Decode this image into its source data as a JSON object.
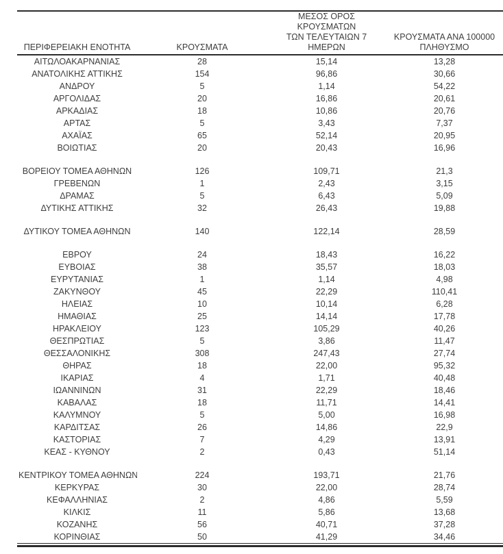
{
  "colors": {
    "text": "#3d3d3d",
    "rule": "#2b2b2b",
    "background": "#ffffff"
  },
  "table": {
    "headers": [
      "ΠΕΡΙΦΕΡΕΙΑΚΗ ΕΝΟΤΗΤΑ",
      "ΚΡΟΥΣΜΑΤΑ",
      "ΜΕΣΟΣ ΟΡΟΣ ΚΡΟΥΣΜΑΤΩΝ\nΤΩΝ ΤΕΛΕΥΤΑΙΩΝ 7\nΗΜΕΡΩΝ",
      "ΚΡΟΥΣΜΑΤΑ ΑΝΑ 100000\nΠΛΗΘΥΣΜΟ"
    ],
    "rows": [
      [
        "ΑΙΤΩΛΟΑΚΑΡΝΑΝΙΑΣ",
        "28",
        "15,14",
        "13,28"
      ],
      [
        "ΑΝΑΤΟΛΙΚΗΣ ΑΤΤΙΚΗΣ",
        "154",
        "96,86",
        "30,66"
      ],
      [
        "ΑΝΔΡΟΥ",
        "5",
        "1,14",
        "54,22"
      ],
      [
        "ΑΡΓΟΛΙΔΑΣ",
        "20",
        "16,86",
        "20,61"
      ],
      [
        "ΑΡΚΑΔΙΑΣ",
        "18",
        "10,86",
        "20,76"
      ],
      [
        "ΑΡΤΑΣ",
        "5",
        "3,43",
        "7,37"
      ],
      [
        "ΑΧΑΪΑΣ",
        "65",
        "52,14",
        "20,95"
      ],
      [
        "ΒΟΙΩΤΙΑΣ",
        "20",
        "20,43",
        "16,96"
      ],
      null,
      [
        "ΒΟΡΕΙΟΥ ΤΟΜΕΑ ΑΘΗΝΩΝ",
        "126",
        "109,71",
        "21,3"
      ],
      [
        "ΓΡΕΒΕΝΩΝ",
        "1",
        "2,43",
        "3,15"
      ],
      [
        "ΔΡΑΜΑΣ",
        "5",
        "6,43",
        "5,09"
      ],
      [
        "ΔΥΤΙΚΗΣ ΑΤΤΙΚΗΣ",
        "32",
        "26,43",
        "19,88"
      ],
      null,
      [
        "ΔΥΤΙΚΟΥ ΤΟΜΕΑ ΑΘΗΝΩΝ",
        "140",
        "122,14",
        "28,59"
      ],
      null,
      [
        "ΕΒΡΟΥ",
        "24",
        "18,43",
        "16,22"
      ],
      [
        "ΕΥΒΟΙΑΣ",
        "38",
        "35,57",
        "18,03"
      ],
      [
        "ΕΥΡΥΤΑΝΙΑΣ",
        "1",
        "1,14",
        "4,98"
      ],
      [
        "ΖΑΚΥΝΘΟΥ",
        "45",
        "22,29",
        "110,41"
      ],
      [
        "ΗΛΕΙΑΣ",
        "10",
        "10,14",
        "6,28"
      ],
      [
        "ΗΜΑΘΙΑΣ",
        "25",
        "14,14",
        "17,78"
      ],
      [
        "ΗΡΑΚΛΕΙΟΥ",
        "123",
        "105,29",
        "40,26"
      ],
      [
        "ΘΕΣΠΡΩΤΙΑΣ",
        "5",
        "3,86",
        "11,47"
      ],
      [
        "ΘΕΣΣΑΛΟΝΙΚΗΣ",
        "308",
        "247,43",
        "27,74"
      ],
      [
        "ΘΗΡΑΣ",
        "18",
        "22,00",
        "95,32"
      ],
      [
        "ΙΚΑΡΙΑΣ",
        "4",
        "1,71",
        "40,48"
      ],
      [
        "ΙΩΑΝΝΙΝΩΝ",
        "31",
        "22,29",
        "18,46"
      ],
      [
        "ΚΑΒΑΛΑΣ",
        "18",
        "11,71",
        "14,41"
      ],
      [
        "ΚΑΛΥΜΝΟΥ",
        "5",
        "5,00",
        "16,98"
      ],
      [
        "ΚΑΡΔΙΤΣΑΣ",
        "26",
        "14,86",
        "22,9"
      ],
      [
        "ΚΑΣΤΟΡΙΑΣ",
        "7",
        "4,29",
        "13,91"
      ],
      [
        "ΚΕΑΣ - ΚΥΘΝΟΥ",
        "2",
        "0,43",
        "51,14"
      ],
      null,
      [
        "ΚΕΝΤΡΙΚΟΥ ΤΟΜΕΑ ΑΘΗΝΩΝ",
        "224",
        "193,71",
        "21,76"
      ],
      [
        "ΚΕΡΚΥΡΑΣ",
        "30",
        "22,00",
        "28,74"
      ],
      [
        "ΚΕΦΑΛΛΗΝΙΑΣ",
        "2",
        "4,86",
        "5,59"
      ],
      [
        "ΚΙΛΚΙΣ",
        "11",
        "5,86",
        "13,68"
      ],
      [
        "ΚΟΖΑΝΗΣ",
        "56",
        "40,71",
        "37,28"
      ],
      [
        "ΚΟΡΙΝΘΙΑΣ",
        "50",
        "41,29",
        "34,46"
      ]
    ]
  }
}
